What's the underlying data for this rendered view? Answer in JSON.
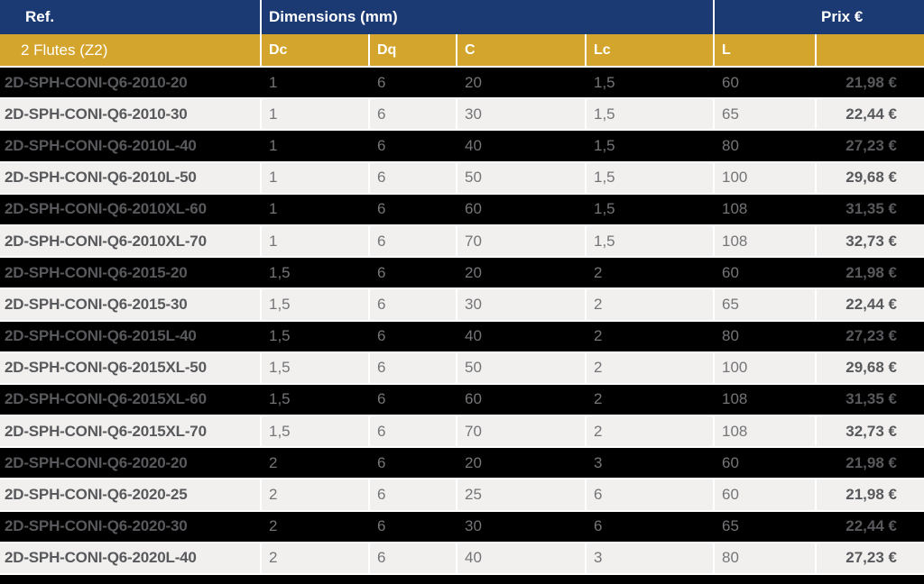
{
  "table": {
    "header": {
      "ref_label": "Ref.",
      "dimensions_label": "Dimensions (mm)",
      "price_label": "Prix €"
    },
    "subheader": {
      "flutes_label": "2 Flutes (Z2)",
      "columns": [
        "Dc",
        "Dq",
        "C",
        "Lc",
        "L"
      ]
    },
    "rows": [
      {
        "ref": "2D-SPH-CONI-Q6-2010-20",
        "dc": "1",
        "dq": "6",
        "c": "20",
        "lc": "1,5",
        "l": "60",
        "price": "21,98 €"
      },
      {
        "ref": "2D-SPH-CONI-Q6-2010-30",
        "dc": "1",
        "dq": "6",
        "c": "30",
        "lc": "1,5",
        "l": "65",
        "price": "22,44 €"
      },
      {
        "ref": "2D-SPH-CONI-Q6-2010L-40",
        "dc": "1",
        "dq": "6",
        "c": "40",
        "lc": "1,5",
        "l": "80",
        "price": "27,23 €"
      },
      {
        "ref": "2D-SPH-CONI-Q6-2010L-50",
        "dc": "1",
        "dq": "6",
        "c": "50",
        "lc": "1,5",
        "l": "100",
        "price": "29,68 €"
      },
      {
        "ref": "2D-SPH-CONI-Q6-2010XL-60",
        "dc": "1",
        "dq": "6",
        "c": "60",
        "lc": "1,5",
        "l": "108",
        "price": "31,35 €"
      },
      {
        "ref": "2D-SPH-CONI-Q6-2010XL-70",
        "dc": "1",
        "dq": "6",
        "c": "70",
        "lc": "1,5",
        "l": "108",
        "price": "32,73 €"
      },
      {
        "ref": "2D-SPH-CONI-Q6-2015-20",
        "dc": "1,5",
        "dq": "6",
        "c": "20",
        "lc": "2",
        "l": "60",
        "price": "21,98 €"
      },
      {
        "ref": "2D-SPH-CONI-Q6-2015-30",
        "dc": "1,5",
        "dq": "6",
        "c": "30",
        "lc": "2",
        "l": "65",
        "price": "22,44 €"
      },
      {
        "ref": "2D-SPH-CONI-Q6-2015L-40",
        "dc": "1,5",
        "dq": "6",
        "c": "40",
        "lc": "2",
        "l": "80",
        "price": "27,23 €"
      },
      {
        "ref": "2D-SPH-CONI-Q6-2015XL-50",
        "dc": "1,5",
        "dq": "6",
        "c": "50",
        "lc": "2",
        "l": "100",
        "price": "29,68 €"
      },
      {
        "ref": "2D-SPH-CONI-Q6-2015XL-60",
        "dc": "1,5",
        "dq": "6",
        "c": "60",
        "lc": "2",
        "l": "108",
        "price": "31,35 €"
      },
      {
        "ref": "2D-SPH-CONI-Q6-2015XL-70",
        "dc": "1,5",
        "dq": "6",
        "c": "70",
        "lc": "2",
        "l": "108",
        "price": "32,73 €"
      },
      {
        "ref": "2D-SPH-CONI-Q6-2020-20",
        "dc": "2",
        "dq": "6",
        "c": "20",
        "lc": "3",
        "l": "60",
        "price": "21,98 €"
      },
      {
        "ref": "2D-SPH-CONI-Q6-2020-25",
        "dc": "2",
        "dq": "6",
        "c": "25",
        "lc": "6",
        "l": "60",
        "price": "21,98 €"
      },
      {
        "ref": "2D-SPH-CONI-Q6-2020-30",
        "dc": "2",
        "dq": "6",
        "c": "30",
        "lc": "6",
        "l": "65",
        "price": "22,44 €"
      },
      {
        "ref": "2D-SPH-CONI-Q6-2020L-40",
        "dc": "2",
        "dq": "6",
        "c": "40",
        "lc": "3",
        "l": "80",
        "price": "27,23 €"
      }
    ]
  },
  "colors": {
    "navy": "#1b3a74",
    "gold": "#d4a52c",
    "row_dark": "#000000",
    "row_light": "#f1f0ee",
    "text_dark": "#58595c",
    "text_mid": "#747578",
    "white": "#ffffff"
  }
}
